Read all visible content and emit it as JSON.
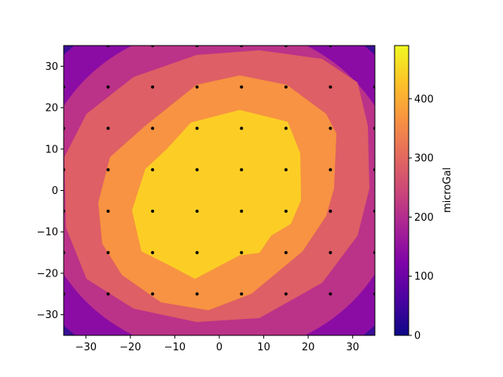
{
  "chart_data": {
    "type": "contour",
    "xlim": [
      -35,
      35
    ],
    "ylim": [
      -35,
      35
    ],
    "x_ticks": [
      -30,
      -20,
      -10,
      0,
      10,
      20,
      30
    ],
    "y_ticks": [
      -30,
      -20,
      -10,
      0,
      10,
      20,
      30
    ],
    "colorbar": {
      "label": "microGal",
      "range": [
        0,
        490
      ],
      "ticks": [
        0,
        100,
        200,
        300,
        400
      ],
      "colormap": "plasma"
    },
    "levels": [
      0,
      70,
      140,
      210,
      280,
      350,
      420,
      490
    ],
    "level_colors": [
      "#0d0887",
      "#3c049b",
      "#8f0da4",
      "#c33d80",
      "#de5f65",
      "#f79342",
      "#fcce25"
    ],
    "grid_x": [
      -35,
      -25,
      -15,
      -5,
      5,
      15,
      25,
      35
    ],
    "grid_y": [
      -35,
      -25,
      -15,
      -5,
      5,
      15,
      25,
      35
    ],
    "points": [
      [
        -35,
        25
      ],
      [
        -25,
        25
      ],
      [
        -15,
        25
      ],
      [
        -5,
        25
      ],
      [
        5,
        25
      ],
      [
        15,
        25
      ],
      [
        25,
        25
      ],
      [
        35,
        25
      ],
      [
        -35,
        15
      ],
      [
        -25,
        15
      ],
      [
        -15,
        15
      ],
      [
        -5,
        15
      ],
      [
        5,
        15
      ],
      [
        15,
        15
      ],
      [
        25,
        15
      ],
      [
        35,
        15
      ],
      [
        -35,
        5
      ],
      [
        -25,
        5
      ],
      [
        -15,
        5
      ],
      [
        -5,
        5
      ],
      [
        5,
        5
      ],
      [
        15,
        5
      ],
      [
        25,
        5
      ],
      [
        35,
        5
      ],
      [
        -35,
        -5
      ],
      [
        -25,
        -5
      ],
      [
        -15,
        -5
      ],
      [
        -5,
        -5
      ],
      [
        5,
        -5
      ],
      [
        15,
        -5
      ],
      [
        25,
        -5
      ],
      [
        35,
        -5
      ],
      [
        -35,
        -15
      ],
      [
        -25,
        -15
      ],
      [
        -15,
        -15
      ],
      [
        -5,
        -15
      ],
      [
        5,
        -15
      ],
      [
        15,
        -15
      ],
      [
        25,
        -15
      ],
      [
        35,
        -15
      ],
      [
        -35,
        -25
      ],
      [
        -25,
        -25
      ],
      [
        -15,
        -25
      ],
      [
        -5,
        -25
      ],
      [
        5,
        -25
      ],
      [
        15,
        -25
      ],
      [
        25,
        -25
      ],
      [
        35,
        -25
      ],
      [
        -25,
        35
      ],
      [
        -15,
        35
      ],
      [
        -5,
        35
      ],
      [
        5,
        35
      ],
      [
        15,
        35
      ],
      [
        25,
        35
      ]
    ]
  }
}
